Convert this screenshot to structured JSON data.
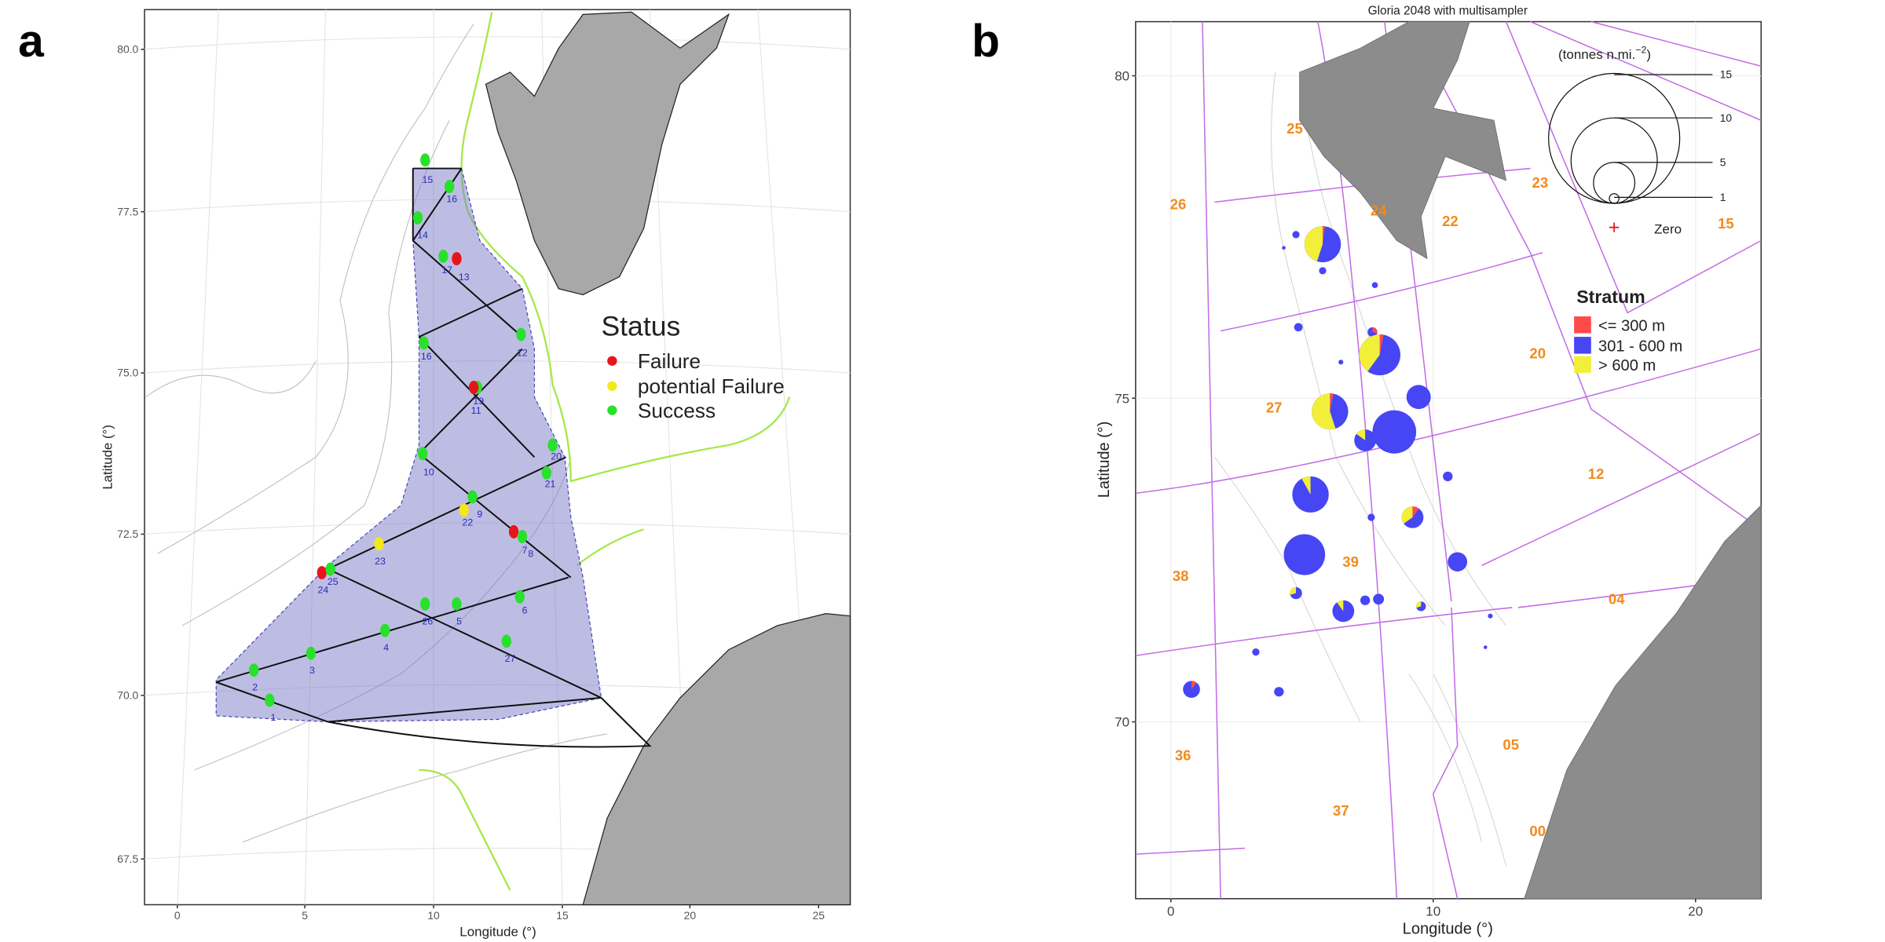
{
  "panel_a": {
    "label": "a",
    "x_axis": {
      "title": "Longitude (°)",
      "ticks": [
        "0",
        "5",
        "10",
        "15",
        "20",
        "25"
      ]
    },
    "y_axis": {
      "title": "Latitude (°)",
      "ticks": [
        "80.0",
        "77.5",
        "75.0",
        "72.5",
        "70.0",
        "67.5"
      ]
    },
    "legend": {
      "title": "Status",
      "items": [
        {
          "label": "Failure",
          "color": "#e8141c"
        },
        {
          "label": "potential Failure",
          "color": "#f2e81a"
        },
        {
          "label": "Success",
          "color": "#29e02c"
        }
      ]
    },
    "stations": [
      "15",
      "16",
      "14",
      "17",
      "13",
      "12",
      "16",
      "19",
      "11",
      "20",
      "10",
      "21",
      "22",
      "9",
      "23",
      "7",
      "8",
      "24",
      "25",
      "26",
      "5",
      "6",
      "4",
      "27",
      "3",
      "2",
      "1"
    ]
  },
  "panel_b": {
    "label": "b",
    "title": "Gloria 2048 with multisampler",
    "x_axis": {
      "title": "Longitude (°)",
      "ticks": [
        "0",
        "10",
        "20"
      ]
    },
    "y_axis": {
      "title": "Latitude (°)",
      "ticks": [
        "80",
        "75",
        "70"
      ]
    },
    "strata": [
      "25",
      "26",
      "24",
      "22",
      "23",
      "15",
      "20",
      "27",
      "12",
      "39",
      "38",
      "04",
      "36",
      "05",
      "37",
      "00"
    ],
    "bubble_scale": {
      "unit": "(tonnes n.mi.",
      "exponent": "−2",
      "close": ")",
      "sizes": [
        "15",
        "10",
        "5",
        "1"
      ],
      "zero": "Zero"
    },
    "legend": {
      "title": "Stratum",
      "items": [
        {
          "label": "<= 300 m",
          "color": "#ff4a4a"
        },
        {
          "label": "301 - 600 m",
          "color": "#4646f5"
        },
        {
          "label": "> 600 m",
          "color": "#f2ef3a"
        }
      ]
    }
  }
}
